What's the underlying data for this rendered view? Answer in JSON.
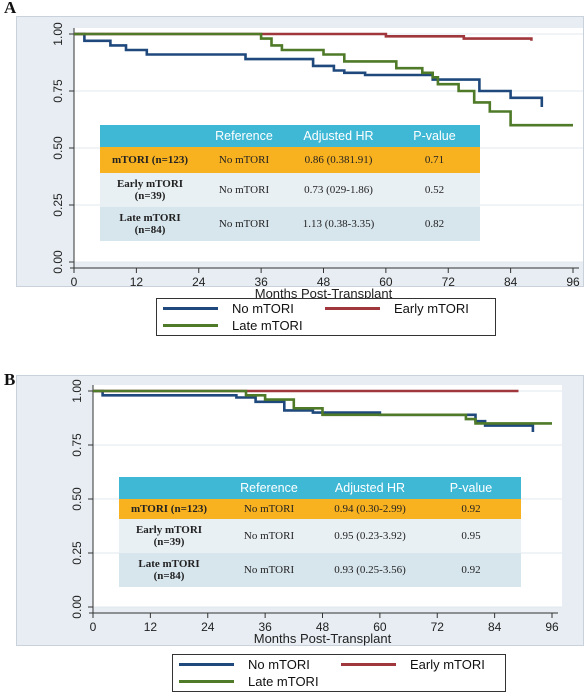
{
  "chart_data": [
    {
      "type": "line",
      "panel_label": "A",
      "xlabel": "Months Post-Transplant",
      "ylabel": "",
      "xlim": [
        0,
        96
      ],
      "ylim": [
        0,
        1
      ],
      "xticks": [
        "0",
        "12",
        "24",
        "36",
        "48",
        "60",
        "72",
        "84",
        "96"
      ],
      "yticks": [
        "0.00",
        "0.25",
        "0.50",
        "0.75",
        "1.00"
      ],
      "series": [
        {
          "name": "No mTORI",
          "color": "#1f497d",
          "x": [
            0,
            2,
            2,
            7,
            7,
            10,
            10,
            14,
            14,
            33,
            33,
            46,
            46,
            50,
            50,
            52,
            52,
            56,
            56,
            69,
            69,
            78,
            78,
            84,
            84,
            90,
            90
          ],
          "y": [
            1.0,
            1.0,
            0.97,
            0.97,
            0.95,
            0.95,
            0.93,
            0.93,
            0.91,
            0.91,
            0.89,
            0.89,
            0.86,
            0.86,
            0.84,
            0.84,
            0.83,
            0.83,
            0.82,
            0.82,
            0.8,
            0.8,
            0.75,
            0.75,
            0.72,
            0.72,
            0.68
          ]
        },
        {
          "name": "Early mTORI",
          "color": "#a0373c",
          "x": [
            0,
            60,
            60,
            75,
            75,
            88,
            88
          ],
          "y": [
            1.0,
            1.0,
            0.99,
            0.99,
            0.98,
            0.98,
            0.97
          ]
        },
        {
          "name": "Late mTORI",
          "color": "#4f7a28",
          "x": [
            0,
            36,
            36,
            38,
            38,
            40,
            40,
            48,
            48,
            52,
            52,
            62,
            62,
            67,
            67,
            69,
            69,
            70,
            70,
            74,
            74,
            77,
            77,
            80,
            80,
            84,
            84,
            96
          ],
          "y": [
            1.0,
            1.0,
            0.98,
            0.98,
            0.95,
            0.95,
            0.93,
            0.93,
            0.91,
            0.91,
            0.88,
            0.88,
            0.85,
            0.85,
            0.83,
            0.83,
            0.81,
            0.81,
            0.78,
            0.78,
            0.75,
            0.75,
            0.7,
            0.7,
            0.66,
            0.66,
            0.6,
            0.6
          ]
        }
      ],
      "table": {
        "headers": [
          "",
          "Reference",
          "Adjusted  HR",
          "P-value"
        ],
        "rows": [
          [
            "mTORI (n=123)",
            "No mTORI",
            "0.86 (0.381.91)",
            "0.71"
          ],
          [
            "Early mTORI (n=39)",
            "No mTORI",
            "0.73 (029-1.86)",
            "0.52"
          ],
          [
            "Late mTORI (n=84)",
            "No mTORI",
            "1.13 (0.38-3.35)",
            "0.82"
          ]
        ]
      }
    },
    {
      "type": "line",
      "panel_label": "B",
      "xlabel": "Months Post-Transplant",
      "ylabel": "",
      "xlim": [
        0,
        96
      ],
      "ylim": [
        0,
        1
      ],
      "xticks": [
        "0",
        "12",
        "24",
        "36",
        "48",
        "60",
        "72",
        "84",
        "96"
      ],
      "yticks": [
        "0.00",
        "0.25",
        "0.50",
        "0.75",
        "1.00"
      ],
      "series": [
        {
          "name": "No mTORI",
          "color": "#1f497d",
          "x": [
            0,
            2,
            2,
            30,
            30,
            34,
            34,
            40,
            40,
            46,
            46,
            60,
            60,
            80,
            80,
            82,
            82,
            92,
            92
          ],
          "y": [
            1.0,
            1.0,
            0.98,
            0.98,
            0.97,
            0.97,
            0.95,
            0.95,
            0.91,
            0.91,
            0.9,
            0.9,
            0.89,
            0.89,
            0.86,
            0.86,
            0.84,
            0.84,
            0.81
          ]
        },
        {
          "name": "Early mTORI",
          "color": "#a0373c",
          "x": [
            0,
            89
          ],
          "y": [
            1.0,
            1.0
          ]
        },
        {
          "name": "Late mTORI",
          "color": "#4f7a28",
          "x": [
            0,
            32,
            32,
            36,
            36,
            42,
            42,
            48,
            48,
            78,
            78,
            80,
            80,
            96
          ],
          "y": [
            1.0,
            1.0,
            0.98,
            0.98,
            0.96,
            0.96,
            0.92,
            0.92,
            0.89,
            0.89,
            0.87,
            0.87,
            0.85,
            0.85
          ]
        }
      ],
      "table": {
        "headers": [
          "",
          "Reference",
          "Adjusted  HR",
          "P-value"
        ],
        "rows": [
          [
            "mTORI (n=123)",
            "No mTORI",
            "0.94  (0.30-2.99)",
            "0.92"
          ],
          [
            "Early mTORI (n=39)",
            "No mTORI",
            "0.95 (0.23-3.92)",
            "0.95"
          ],
          [
            "Late mTORI (n=84)",
            "No mTORI",
            "0.93 (0.25-3.56)",
            "0.92"
          ]
        ]
      }
    }
  ]
}
